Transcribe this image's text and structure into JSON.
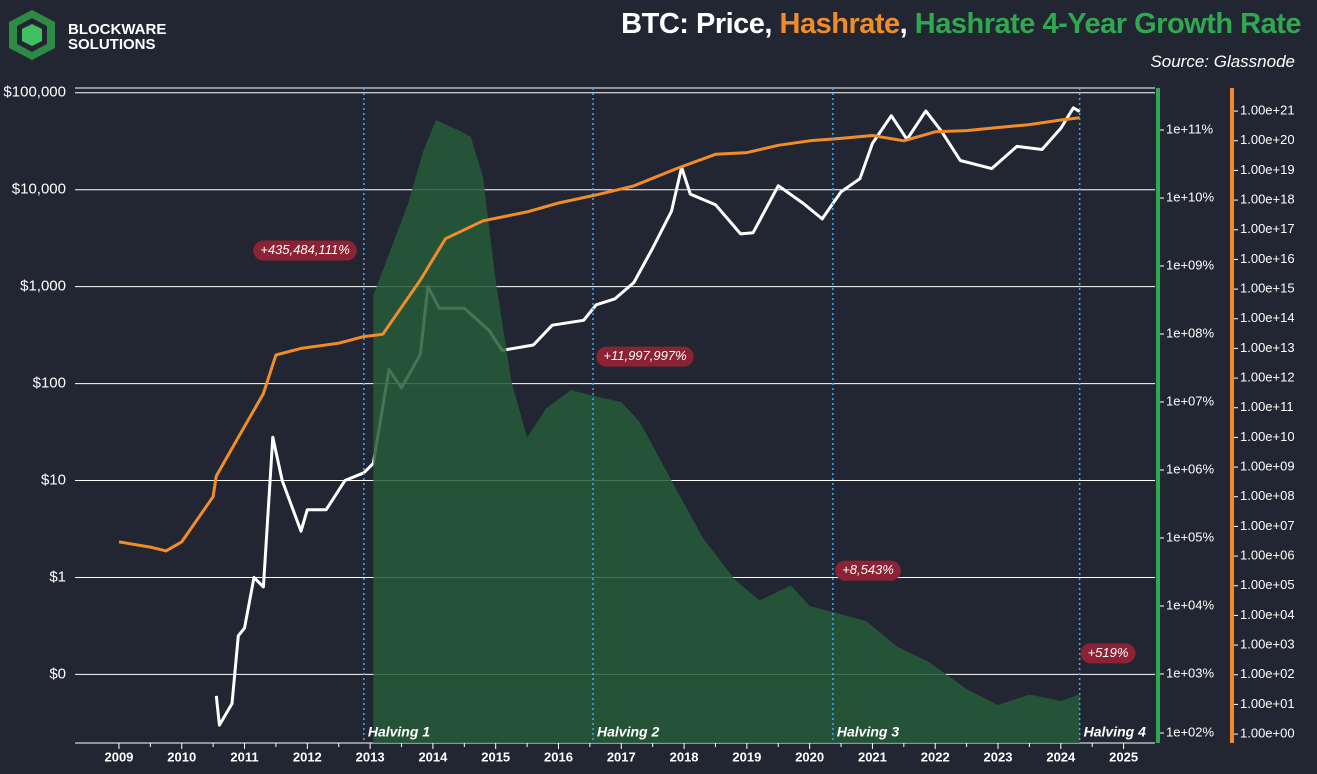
{
  "chart_data": {
    "type": "line",
    "title_parts": [
      "BTC: Price, ",
      "Hashrate",
      ", ",
      "Hashrate 4-Year Growth Rate"
    ],
    "title_colors": [
      "#ffffff",
      "#f28c28",
      "#ffffff",
      "#2fa84f"
    ],
    "source": "Source: Glassnode",
    "brand": [
      "BLOCKWARE",
      "SOLUTIONS"
    ],
    "log_scale": true,
    "grid": true,
    "xlim": [
      2008.3,
      2025.5
    ],
    "xticks": [
      2009,
      2010,
      2011,
      2012,
      2013,
      2014,
      2015,
      2016,
      2017,
      2018,
      2019,
      2020,
      2021,
      2022,
      2023,
      2024,
      2025
    ],
    "ylim": [
      0.0196,
      112000
    ],
    "yticks": [
      {
        "value": 0.1,
        "label": "$0"
      },
      {
        "value": 1,
        "label": "$1"
      },
      {
        "value": 10,
        "label": "$10"
      },
      {
        "value": 100,
        "label": "$100"
      },
      {
        "value": 1000,
        "label": "$1,000"
      },
      {
        "value": 10000,
        "label": "$10,000"
      },
      {
        "value": 100000,
        "label": "$100,000"
      }
    ],
    "y2lim": [
      96.6,
      415000000000
    ],
    "y2ticks": [
      {
        "value": 100,
        "label": "1e+02%"
      },
      {
        "value": 1000,
        "label": "1e+03%"
      },
      {
        "value": 10000,
        "label": "1e+04%"
      },
      {
        "value": 100000,
        "label": "1e+05%"
      },
      {
        "value": 1000000,
        "label": "1e+06%"
      },
      {
        "value": 10000000,
        "label": "1e+07%"
      },
      {
        "value": 100000000,
        "label": "1e+08%"
      },
      {
        "value": 1000000000,
        "label": "1e+09%"
      },
      {
        "value": 10000000000,
        "label": "1e+10%"
      },
      {
        "value": 100000000000,
        "label": "1e+11%"
      }
    ],
    "y3lim": [
      0.5,
      6e+21
    ],
    "y3ticks": [
      {
        "value": 1,
        "label": "1.00e+00"
      },
      {
        "value": 10.0,
        "label": "1.00e+01"
      },
      {
        "value": 100.0,
        "label": "1.00e+02"
      },
      {
        "value": 1000.0,
        "label": "1.00e+03"
      },
      {
        "value": 10000.0,
        "label": "1.00e+04"
      },
      {
        "value": 100000.0,
        "label": "1.00e+05"
      },
      {
        "value": 1000000.0,
        "label": "1.00e+06"
      },
      {
        "value": 10000000.0,
        "label": "1.00e+07"
      },
      {
        "value": 100000000.0,
        "label": "1.00e+08"
      },
      {
        "value": 1000000000.0,
        "label": "1.00e+09"
      },
      {
        "value": 10000000000.0,
        "label": "1.00e+10"
      },
      {
        "value": 100000000000.0,
        "label": "1.00e+11"
      },
      {
        "value": 1000000000000.0,
        "label": "1.00e+12"
      },
      {
        "value": 10000000000000.0,
        "label": "1.00e+13"
      },
      {
        "value": 100000000000000.0,
        "label": "1.00e+14"
      },
      {
        "value": 1000000000000000.0,
        "label": "1.00e+15"
      },
      {
        "value": 1e+16,
        "label": "1.00e+16"
      },
      {
        "value": 1e+17,
        "label": "1.00e+17"
      },
      {
        "value": 1e+18,
        "label": "1.00e+18"
      },
      {
        "value": 1e+19,
        "label": "1.00e+19"
      },
      {
        "value": 1e+20,
        "label": "1.00e+20"
      },
      {
        "value": 1e+21,
        "label": "1.00e+21"
      }
    ],
    "series": [
      {
        "color": "#ffffff",
        "axis": "y",
        "kind": "line",
        "x": [
          2010.55,
          2010.6,
          2010.8,
          2010.9,
          2011.0,
          2011.15,
          2011.3,
          2011.45,
          2011.6,
          2011.9,
          2012.0,
          2012.3,
          2012.6,
          2012.9,
          2013.05,
          2013.3,
          2013.5,
          2013.8,
          2013.92,
          2014.1,
          2014.5,
          2014.9,
          2015.1,
          2015.6,
          2015.9,
          2016.4,
          2016.6,
          2016.9,
          2017.2,
          2017.5,
          2017.8,
          2017.96,
          2018.1,
          2018.5,
          2018.9,
          2019.1,
          2019.5,
          2019.9,
          2020.2,
          2020.5,
          2020.8,
          2021.0,
          2021.3,
          2021.55,
          2021.85,
          2022.1,
          2022.4,
          2022.9,
          2023.3,
          2023.7,
          2024.0,
          2024.2,
          2024.3
        ],
        "values": [
          0.06,
          0.03,
          0.05,
          0.25,
          0.3,
          1,
          0.8,
          28,
          10,
          3,
          5,
          5,
          10,
          12,
          15,
          140,
          90,
          200,
          1000,
          600,
          600,
          350,
          220,
          250,
          400,
          450,
          650,
          750,
          1100,
          2500,
          6000,
          17000,
          9000,
          7000,
          3500,
          3600,
          11000,
          7200,
          5000,
          9500,
          13000,
          30000,
          58000,
          33000,
          65000,
          40000,
          20000,
          16500,
          28000,
          26000,
          43000,
          70000,
          64000
        ]
      },
      {
        "color": "#2fa84f",
        "fill": "#245c3a",
        "axis": "y2",
        "kind": "area",
        "x": [
          2013.05,
          2013.3,
          2013.6,
          2013.85,
          2014.05,
          2014.4,
          2014.6,
          2014.8,
          2015.0,
          2015.25,
          2015.5,
          2015.8,
          2016.2,
          2016.6,
          2017.0,
          2017.3,
          2017.8,
          2018.3,
          2018.8,
          2019.2,
          2019.7,
          2020.0,
          2020.4,
          2020.9,
          2021.4,
          2021.9,
          2022.5,
          2023.0,
          2023.5,
          2024.0,
          2024.3
        ],
        "values": [
          370000000,
          1500000000,
          8000000000,
          50000000000,
          140000000000,
          100000000000,
          80000000000,
          20000000000,
          600000000,
          20000000,
          3000000,
          8000000,
          15000000,
          12000000,
          10000000,
          5000000,
          700000,
          100000,
          25000,
          12000,
          20000,
          10000,
          8000,
          6000,
          2500,
          1500,
          600,
          350,
          500,
          400,
          500
        ]
      },
      {
        "color": "#f28c28",
        "axis": "y3",
        "kind": "line",
        "x": [
          2009.0,
          2009.5,
          2009.75,
          2010.0,
          2010.5,
          2010.55,
          2010.9,
          2011.3,
          2011.5,
          2011.9,
          2012.5,
          2012.9,
          2013.2,
          2013.8,
          2014.2,
          2014.8,
          2015.5,
          2016.0,
          2016.6,
          2017.2,
          2017.9,
          2018.5,
          2019.0,
          2019.5,
          2020.0,
          2020.5,
          2021.0,
          2021.5,
          2022.0,
          2022.5,
          2023.0,
          2023.5,
          2024.0,
          2024.3
        ],
        "values": [
          3000000,
          2000000,
          1500000,
          3000000,
          100000000,
          500000000,
          10000000000,
          300000000000,
          6000000000000,
          10000000000000,
          15000000000000,
          25000000000000,
          30000000000000,
          2000000000000000,
          50000000000000000,
          200000000000000000,
          400000000000000000,
          800000000000000000,
          1.5e+18,
          3e+18,
          1.2e+19,
          3.5e+19,
          4e+19,
          7e+19,
          1e+20,
          1.2e+20,
          1.5e+20,
          1e+20,
          2e+20,
          2.2e+20,
          2.8e+20,
          3.5e+20,
          5e+20,
          6e+20
        ]
      }
    ],
    "halvings": [
      {
        "label": "Halving 1",
        "x": 2012.9
      },
      {
        "label": "Halving 2",
        "x": 2016.55
      },
      {
        "label": "Halving 3",
        "x": 2020.37
      },
      {
        "label": "Halving 4",
        "x": 2024.3
      }
    ],
    "annotations": [
      {
        "label": "+435,484,111%",
        "value": 435484111
      },
      {
        "label": "+11,997,997%",
        "value": 11997997
      },
      {
        "label": "+8,543%",
        "value": 8543
      },
      {
        "label": "+519%",
        "value": 519
      }
    ]
  }
}
